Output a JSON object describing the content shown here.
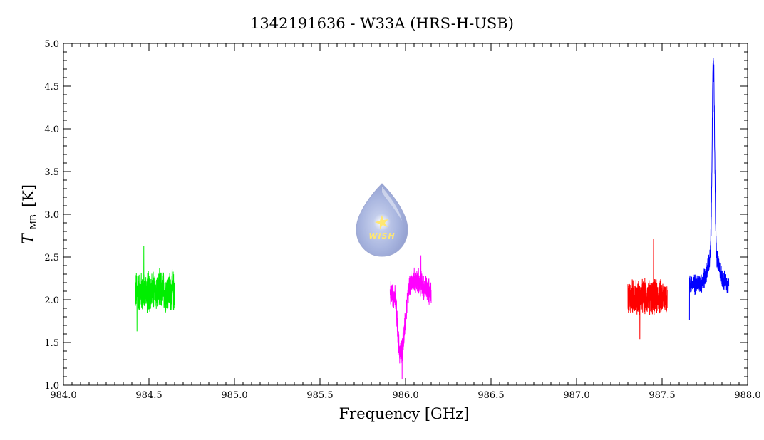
{
  "chart_data": {
    "type": "line",
    "title": "1342191636 - W33A (HRS-H-USB)",
    "xlabel": "Frequency [GHz]",
    "ylabel": {
      "main": "T",
      "sub": "MB",
      "rest": "[K]"
    },
    "xlim": [
      984.0,
      988.0
    ],
    "ylim": [
      1.0,
      5.0
    ],
    "x_ticks": [
      "984.0",
      "984.5",
      "985.0",
      "985.5",
      "986.0",
      "986.5",
      "987.0",
      "987.5",
      "988.0"
    ],
    "y_ticks": [
      "1.0",
      "1.5",
      "2.0",
      "2.5",
      "3.0",
      "3.5",
      "4.0",
      "4.5",
      "5.0"
    ],
    "grid": false,
    "legend": "none",
    "logo_text": "WISH",
    "series": [
      {
        "color": "#00ee00",
        "x_range": [
          984.42,
          984.65
        ],
        "baseline": 2.1,
        "noise_amplitude": 0.28,
        "features": [],
        "extremes": [
          [
            984.47,
            2.63
          ],
          [
            984.43,
            1.63
          ]
        ]
      },
      {
        "color": "#ff00ff",
        "x_range": [
          985.91,
          986.15
        ],
        "baseline": 2.08,
        "noise_amplitude": 0.18,
        "features": [
          [
            985.98,
            -0.65,
            0.018
          ],
          [
            985.96,
            -0.25,
            0.01
          ],
          [
            986.06,
            0.14,
            0.04
          ]
        ],
        "extremes": [
          [
            985.98,
            1.07
          ],
          [
            986.09,
            2.52
          ]
        ]
      },
      {
        "color": "#ff0000",
        "x_range": [
          987.3,
          987.53
        ],
        "baseline": 2.03,
        "noise_amplitude": 0.24,
        "features": [],
        "extremes": [
          [
            987.45,
            2.71
          ],
          [
            987.37,
            1.54
          ]
        ]
      },
      {
        "color": "#0000ff",
        "x_range": [
          987.66,
          987.89
        ],
        "baseline": 2.18,
        "noise_amplitude": 0.14,
        "features": [
          [
            987.8,
            2.3,
            0.007
          ],
          [
            987.8,
            0.35,
            0.03
          ]
        ],
        "extremes": [
          [
            987.8,
            4.55
          ],
          [
            987.66,
            1.76
          ]
        ]
      }
    ]
  },
  "colors": {
    "axis": "#000000",
    "background": "#ffffff"
  }
}
